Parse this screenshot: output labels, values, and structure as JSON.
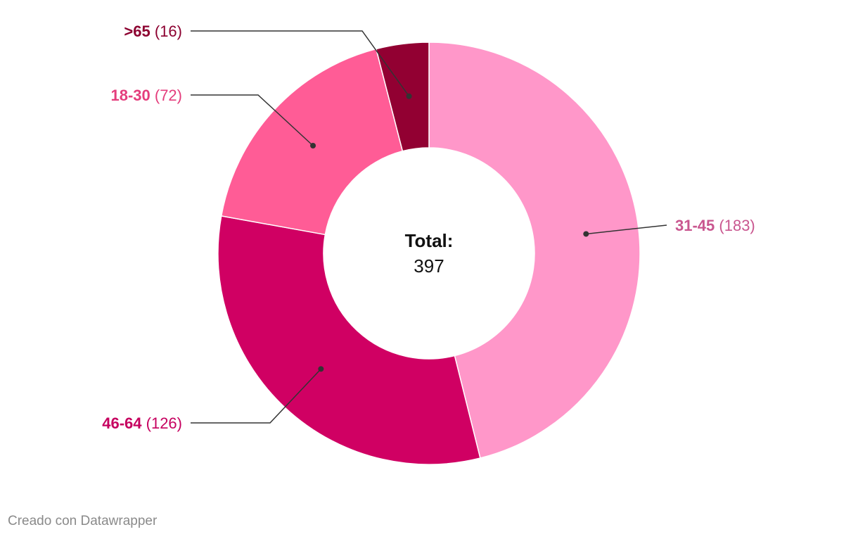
{
  "chart_data": {
    "type": "pie",
    "style": "donut",
    "center_label": {
      "title": "Total:",
      "value": "397"
    },
    "slices": [
      {
        "label": "31-45",
        "value": 183,
        "display": "(183)",
        "color": "#ff97c9",
        "label_color": "#c9568f"
      },
      {
        "label": "46-64",
        "value": 126,
        "display": "(126)",
        "color": "#d00063",
        "label_color": "#c6005f"
      },
      {
        "label": "18-30",
        "value": 72,
        "display": "(72)",
        "color": "#ff5c96",
        "label_color": "#e43d7c"
      },
      {
        "label": ">65",
        "value": 16,
        "display": "(16)",
        "color": "#920032",
        "label_color": "#8c0030"
      }
    ]
  },
  "footer": {
    "credit": "Creado con Datawrapper"
  }
}
